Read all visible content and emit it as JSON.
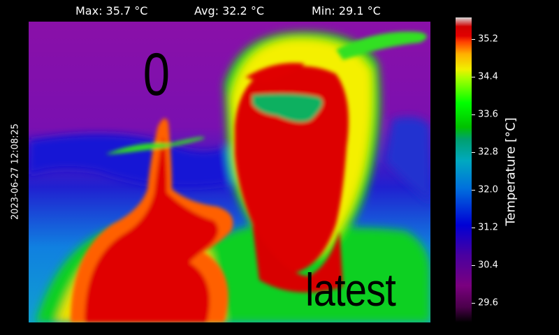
{
  "stats": {
    "max": "Max: 35.7 °C",
    "avg": "Avg: 32.2 °C",
    "min": "Min: 29.1 °C"
  },
  "timestamp": "2023-06-27 12:08:25",
  "overlay": {
    "frame_number": "0",
    "frame_label": "latest"
  },
  "colorbar": {
    "label": "Temperature [°C]",
    "range": [
      29.1,
      35.7
    ],
    "ticks": [
      "35.2",
      "34.4",
      "33.6",
      "32.8",
      "32.0",
      "31.2",
      "30.4",
      "29.6"
    ]
  },
  "colors": {
    "hot": "#dd0000",
    "warm": "#ffff00",
    "mid": "#00ff00",
    "cool": "#00a0ff",
    "cold": "#800090"
  }
}
